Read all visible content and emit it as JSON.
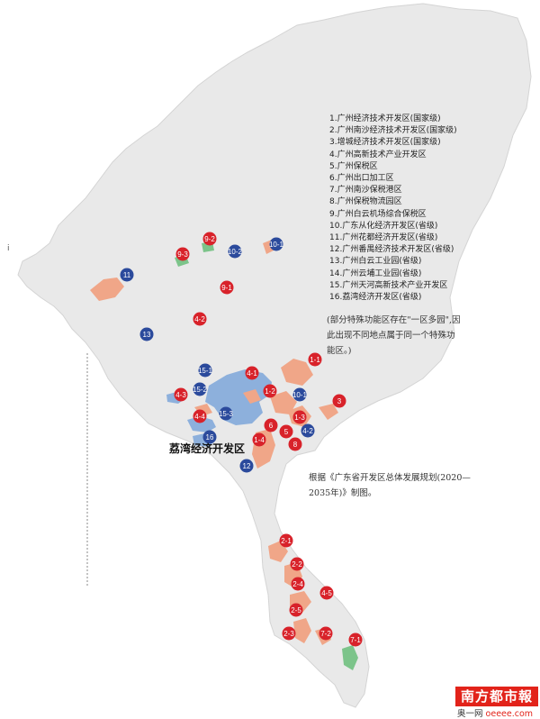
{
  "legend": [
    "1.广州经济技术开发区(国家级)",
    "2.广州南沙经济技术开发区(国家级)",
    "3.增城经济技术开发区(国家级)",
    "4.广州高新技术产业开发区",
    "5.广州保税区",
    "6.广州出口加工区",
    "7.广州南沙保税港区",
    "8.广州保税物流园区",
    "9.广州白云机场综合保税区",
    "10.广东从化经济开发区(省级)",
    "11.广州花都经济开发区(省级)",
    "12.广州番禺经济技术开发区(省级)",
    "13.广州白云工业园(省级)",
    "14.广州云埔工业园(省级)",
    "15.广州天河高新技术产业开发区",
    "16.荔湾经济开发区(省级)"
  ],
  "note": "(部分特殊功能区存在\"一区多园\",因此出现不同地点属于同一个特殊功能区。)",
  "source": "根据《广东省开发区总体发展规划(2020—2035年)》制图。",
  "zone_label": "荔湾经济开发区",
  "brand": "南方都市報",
  "brand_sub_prefix": "奥一网",
  "brand_sub_site": "oeeee.com",
  "edge_mark": "i",
  "colors": {
    "land": "#e9e9e9",
    "zone_orange": "#f0a688",
    "zone_blue": "#8db0dc",
    "zone_green": "#7cc48a",
    "marker_red": "#d8222a",
    "marker_blue": "#2b4a9c"
  },
  "markers": [
    {
      "label": "9-2",
      "color": "red"
    },
    {
      "label": "9-3",
      "color": "red"
    },
    {
      "label": "10-2",
      "color": "blue"
    },
    {
      "label": "10-1",
      "color": "blue"
    },
    {
      "label": "11",
      "color": "blue"
    },
    {
      "label": "9-1",
      "color": "red"
    },
    {
      "label": "4-2",
      "color": "red"
    },
    {
      "label": "13",
      "color": "blue"
    },
    {
      "label": "1-1",
      "color": "red"
    },
    {
      "label": "15-1",
      "color": "blue"
    },
    {
      "label": "4-1",
      "color": "red"
    },
    {
      "label": "15-2",
      "color": "blue"
    },
    {
      "label": "4-3",
      "color": "red"
    },
    {
      "label": "1-2",
      "color": "red"
    },
    {
      "label": "10-1",
      "color": "blue"
    },
    {
      "label": "3",
      "color": "red"
    },
    {
      "label": "4-4",
      "color": "red"
    },
    {
      "label": "15-3",
      "color": "blue"
    },
    {
      "label": "1-3",
      "color": "red"
    },
    {
      "label": "6",
      "color": "red"
    },
    {
      "label": "5",
      "color": "red"
    },
    {
      "label": "4-2",
      "color": "blue"
    },
    {
      "label": "16",
      "color": "blue"
    },
    {
      "label": "1-4",
      "color": "red"
    },
    {
      "label": "8",
      "color": "red"
    },
    {
      "label": "12",
      "color": "blue"
    },
    {
      "label": "2-1",
      "color": "red"
    },
    {
      "label": "2-2",
      "color": "red"
    },
    {
      "label": "2-4",
      "color": "red"
    },
    {
      "label": "4-5",
      "color": "red"
    },
    {
      "label": "2-5",
      "color": "red"
    },
    {
      "label": "2-3",
      "color": "red"
    },
    {
      "label": "7-2",
      "color": "red"
    },
    {
      "label": "7-1",
      "color": "red"
    }
  ]
}
